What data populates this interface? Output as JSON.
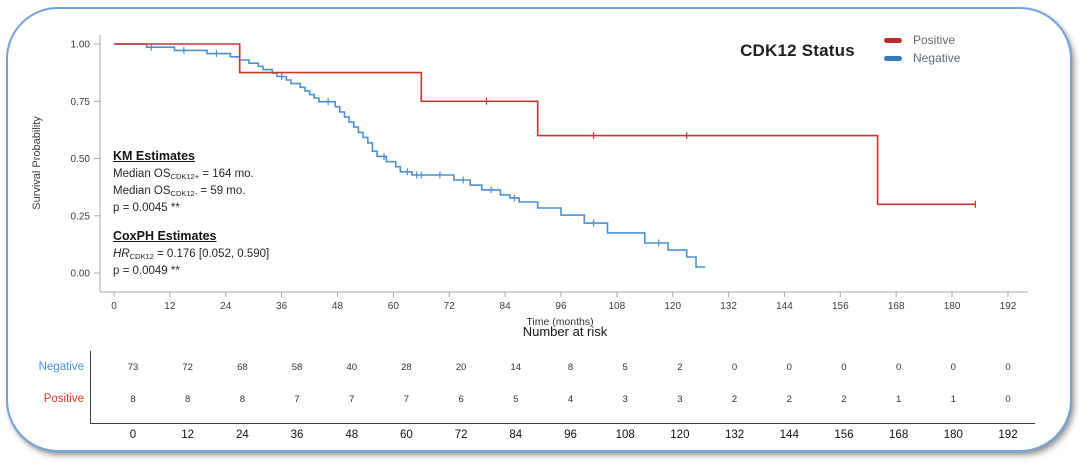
{
  "colors": {
    "card_border": "#74a2da",
    "axis": "#a9a9a9",
    "axis_text": "#3d3d3d",
    "table_line": "#3f3f3f",
    "positive_red": "#cc342c",
    "negative_blue": "#4a90d4"
  },
  "chart_data": {
    "type": "line",
    "subtype": "kaplan-meier-step",
    "title": "CDK12 Status",
    "xlabel": "Time (months)",
    "ylabel": "Survival Probability",
    "xlim": [
      0,
      192
    ],
    "ylim": [
      0,
      1
    ],
    "grid": "off",
    "x_ticks": [
      0,
      12,
      24,
      36,
      48,
      60,
      72,
      84,
      96,
      108,
      120,
      132,
      144,
      156,
      168,
      180,
      192
    ],
    "y_ticks": [
      {
        "value": 1.0,
        "label": "1.00"
      },
      {
        "value": 0.75,
        "label": "0.75"
      },
      {
        "value": 0.5,
        "label": "0.50"
      },
      {
        "value": 0.25,
        "label": "0.25"
      },
      {
        "value": 0.0,
        "label": "0.00"
      }
    ],
    "legend": {
      "position": "top-right",
      "entries": [
        {
          "label": "Positive",
          "color": "#bf2d27"
        },
        {
          "label": "Negative",
          "color": "#3577b8"
        }
      ]
    },
    "series": [
      {
        "name": "Negative",
        "color": "#4a90d4",
        "end": 127,
        "censors": [
          8,
          15,
          22,
          36,
          46,
          58,
          63,
          65,
          66,
          70,
          75,
          81,
          86,
          103,
          117
        ],
        "steps": [
          [
            0,
            1.0
          ],
          [
            7,
            0.986
          ],
          [
            13,
            0.972
          ],
          [
            20,
            0.958
          ],
          [
            25,
            0.944
          ],
          [
            27,
            0.93
          ],
          [
            29,
            0.916
          ],
          [
            31,
            0.902
          ],
          [
            32,
            0.888
          ],
          [
            34,
            0.873
          ],
          [
            35,
            0.858
          ],
          [
            37,
            0.843
          ],
          [
            38,
            0.827
          ],
          [
            40,
            0.811
          ],
          [
            41,
            0.795
          ],
          [
            42,
            0.779
          ],
          [
            43,
            0.764
          ],
          [
            44,
            0.748
          ],
          [
            47.5,
            0.726
          ],
          [
            48.5,
            0.703
          ],
          [
            49.5,
            0.681
          ],
          [
            50.5,
            0.659
          ],
          [
            51.5,
            0.637
          ],
          [
            52.5,
            0.614
          ],
          [
            53.5,
            0.592
          ],
          [
            54.5,
            0.568
          ],
          [
            55.5,
            0.532
          ],
          [
            56.5,
            0.509
          ],
          [
            58.5,
            0.486
          ],
          [
            60.5,
            0.464
          ],
          [
            61.5,
            0.442
          ],
          [
            64,
            0.428
          ],
          [
            73,
            0.406
          ],
          [
            76.5,
            0.384
          ],
          [
            79,
            0.363
          ],
          [
            83,
            0.341
          ],
          [
            85,
            0.328
          ],
          [
            87,
            0.31
          ],
          [
            91,
            0.284
          ],
          [
            96,
            0.253
          ],
          [
            101,
            0.218
          ],
          [
            106,
            0.175
          ],
          [
            114,
            0.131
          ],
          [
            119,
            0.1
          ],
          [
            123,
            0.07
          ],
          [
            125,
            0.026
          ]
        ]
      },
      {
        "name": "Positive",
        "color": "#cc342c",
        "end": 185,
        "censors": [
          80,
          103,
          123,
          185
        ],
        "steps": [
          [
            0,
            1.0
          ],
          [
            27,
            0.875
          ],
          [
            66,
            0.75
          ],
          [
            91,
            0.6
          ],
          [
            164,
            0.3
          ]
        ]
      }
    ]
  },
  "annotations": {
    "km_heading": "KM Estimates",
    "km_lines": [
      {
        "parts": [
          {
            "t": "Median OS"
          },
          {
            "s": "CDK12+"
          },
          {
            "t": " = 164 mo."
          }
        ]
      },
      {
        "parts": [
          {
            "t": "Median OS"
          },
          {
            "s": "CDK12-"
          },
          {
            "t": " = 59 mo."
          }
        ]
      },
      {
        "parts": [
          {
            "t": "p = 0.0045 **"
          }
        ]
      }
    ],
    "cox_heading": "CoxPH Estimates",
    "cox_lines": [
      {
        "parts": [
          {
            "t": "HR",
            "i": true
          },
          {
            "s": "CDK12"
          },
          {
            "t": " = 0.176 [0.052, 0.590]"
          }
        ]
      },
      {
        "parts": [
          {
            "t": "p = 0.0049 **"
          }
        ]
      }
    ]
  },
  "risk_table": {
    "title": "Number at risk",
    "x_ticks": [
      0,
      12,
      24,
      36,
      48,
      60,
      72,
      84,
      96,
      108,
      120,
      132,
      144,
      156,
      168,
      180,
      192
    ],
    "rows": [
      {
        "label": "Negative",
        "color": "#4a90d4",
        "values": [
          73,
          72,
          68,
          58,
          40,
          28,
          20,
          14,
          8,
          5,
          2,
          0,
          0,
          0,
          0,
          0,
          0
        ]
      },
      {
        "label": "Positive",
        "color": "#cc342c",
        "values": [
          8,
          8,
          8,
          7,
          7,
          7,
          6,
          5,
          4,
          3,
          3,
          2,
          2,
          2,
          1,
          1,
          0
        ]
      }
    ]
  }
}
